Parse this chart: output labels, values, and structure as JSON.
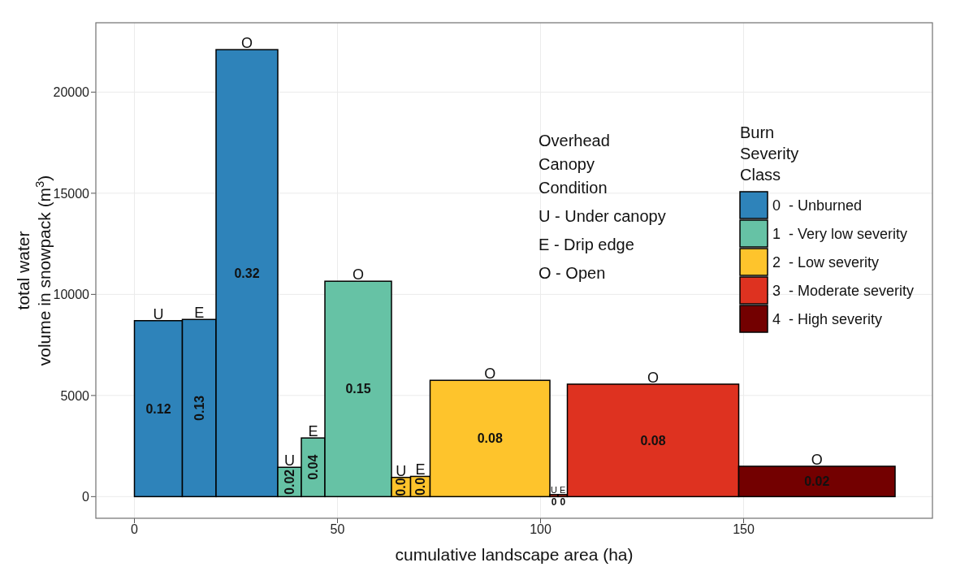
{
  "chart_data": {
    "type": "histogram",
    "xlabel": "cumulative landscape area (ha)",
    "ylabel": "total water\nvolume in snowpack (m$^{3}$)",
    "legend_title": "Burn\nSeverity\nClass",
    "bins": [
      0,
      11.8,
      20.1,
      35.3,
      41.1,
      46.9,
      63.3,
      68.0,
      72.8,
      102.3,
      104.3,
      106.6,
      148.8,
      187.3
    ],
    "series": [
      {
        "name": "0  - Unburned",
        "color": "#2e83ba",
        "values": [
          8700,
          8760,
          22100,
          null,
          null,
          null,
          null,
          null,
          null,
          null,
          null,
          null,
          null
        ]
      },
      {
        "name": "1  - Very low severity",
        "color": "#66c2a5",
        "values": [
          null,
          null,
          null,
          1450,
          2900,
          10650,
          null,
          null,
          null,
          null,
          null,
          null,
          null
        ]
      },
      {
        "name": "2  - Low severity",
        "color": "#fec42c",
        "values": [
          null,
          null,
          null,
          null,
          null,
          null,
          950,
          1000,
          5750,
          null,
          null,
          null,
          null
        ]
      },
      {
        "name": "3  - Moderate severity",
        "color": "#de3220",
        "values": [
          null,
          null,
          null,
          null,
          null,
          null,
          null,
          null,
          null,
          100,
          100,
          5560,
          null
        ]
      },
      {
        "name": "4  - High severity",
        "color": "#730000",
        "values": [
          null,
          null,
          null,
          null,
          null,
          null,
          null,
          null,
          null,
          null,
          null,
          null,
          1500
        ]
      }
    ],
    "xlim": [
      -9.5,
      196.5
    ],
    "xticks": [
      0,
      50,
      100,
      150
    ],
    "ylim": [
      -1070,
      23430
    ],
    "yticks": [
      0,
      5000,
      10000,
      15000,
      20000
    ],
    "grid": true,
    "legend": "top right",
    "annotations": [
      "Overhead\nCanopy\nCondition",
      "U - Under canopy",
      "E - Drip edge",
      "O - Open",
      {
        "text": "U",
        "x": 5.9,
        "y": 8700
      },
      {
        "text": "E",
        "x": 15.95,
        "y": 8760
      },
      {
        "text": "O",
        "x": 27.7,
        "y": 22100
      },
      {
        "text": "U",
        "x": 38.2,
        "y": 1450
      },
      {
        "text": "E",
        "x": 44.0,
        "y": 2900
      },
      {
        "text": "O",
        "x": 55.1,
        "y": 10650
      },
      {
        "text": "U",
        "x": 65.65,
        "y": 950
      },
      {
        "text": "E",
        "x": 70.4,
        "y": 1000
      },
      {
        "text": "O",
        "x": 87.55,
        "y": 5750
      },
      {
        "text": "U",
        "x": 103.3,
        "y": 100
      },
      {
        "text": "E",
        "x": 105.45,
        "y": 100
      },
      {
        "text": "O",
        "x": 127.7,
        "y": 5560
      },
      {
        "text": "O",
        "x": 168.05,
        "y": 1500
      },
      "0.12",
      "0.13",
      "0.32",
      "0.02",
      "0.04",
      "0.15",
      "0.0",
      "0.0",
      "0.08",
      "0",
      "0",
      "0.08",
      "0.02"
    ]
  }
}
